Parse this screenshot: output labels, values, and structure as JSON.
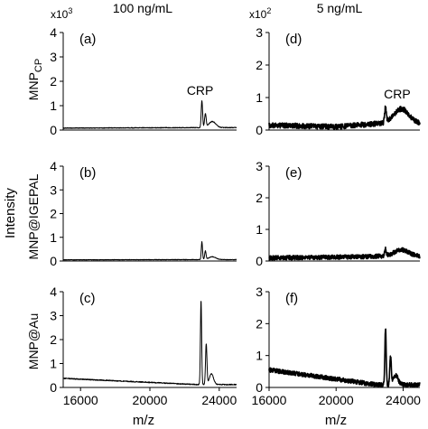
{
  "figure": {
    "shared_ylabel": "Intensity",
    "col_titles": [
      "100 ng/mL",
      "5 ng/mL"
    ],
    "col_multipliers": [
      {
        "base": "x10",
        "exp": "3"
      },
      {
        "base": "x10",
        "exp": "2"
      }
    ],
    "row_labels": [
      {
        "main": "MNP",
        "sub": "CP"
      },
      {
        "main": "MNP@IGEPAL",
        "sub": ""
      },
      {
        "main": "MNP@Au",
        "sub": ""
      }
    ],
    "xlabel": "m/z"
  },
  "chart_data": [
    {
      "id": "a",
      "panel_label": "(a)",
      "type": "line",
      "annotation": "CRP",
      "xlim": [
        15000,
        25000
      ],
      "ylim": [
        0,
        4
      ],
      "yticks": [
        0,
        1,
        2,
        3,
        4
      ],
      "xticks": [],
      "y_scale": "x10^3",
      "baseline": [
        {
          "x": 15000,
          "y": 0.08
        },
        {
          "x": 22500,
          "y": 0.1
        }
      ],
      "peaks": [
        {
          "x": 23000,
          "h": 1.1,
          "w": 40
        },
        {
          "x": 23200,
          "h": 0.55,
          "w": 45
        },
        {
          "x": 23600,
          "h": 0.25,
          "w": 200
        }
      ],
      "noise": 0.015
    },
    {
      "id": "b",
      "panel_label": "(b)",
      "type": "line",
      "xlim": [
        15000,
        25000
      ],
      "ylim": [
        0,
        4
      ],
      "yticks": [
        0,
        1,
        2,
        3,
        4
      ],
      "xticks": [],
      "y_scale": "x10^3",
      "baseline": [
        {
          "x": 15000,
          "y": 0.05
        },
        {
          "x": 22500,
          "y": 0.06
        }
      ],
      "peaks": [
        {
          "x": 23000,
          "h": 0.75,
          "w": 35
        },
        {
          "x": 23200,
          "h": 0.35,
          "w": 40
        },
        {
          "x": 23600,
          "h": 0.12,
          "w": 200
        }
      ],
      "noise": 0.01
    },
    {
      "id": "c",
      "panel_label": "(c)",
      "type": "line",
      "xlim": [
        15000,
        25000
      ],
      "ylim": [
        0,
        4
      ],
      "yticks": [
        0,
        1,
        2,
        3,
        4
      ],
      "xticks": [
        16000,
        20000,
        24000
      ],
      "y_scale": "x10^3",
      "baseline": [
        {
          "x": 15000,
          "y": 0.38
        },
        {
          "x": 22700,
          "y": 0.12
        }
      ],
      "peaks": [
        {
          "x": 22950,
          "h": 3.5,
          "w": 35
        },
        {
          "x": 23250,
          "h": 1.7,
          "w": 40
        },
        {
          "x": 23550,
          "h": 0.45,
          "w": 120
        }
      ],
      "noise": 0.02
    },
    {
      "id": "d",
      "panel_label": "(d)",
      "type": "line",
      "annotation": "CRP",
      "xlim": [
        16000,
        25000
      ],
      "ylim": [
        0,
        3
      ],
      "yticks": [
        0,
        1,
        2,
        3
      ],
      "xticks": [],
      "y_scale": "x10^2",
      "baseline": [
        {
          "x": 16000,
          "y": 0.15
        },
        {
          "x": 20000,
          "y": 0.1
        },
        {
          "x": 22500,
          "y": 0.2
        }
      ],
      "peaks": [
        {
          "x": 22950,
          "h": 0.45,
          "w": 50
        },
        {
          "x": 23900,
          "h": 0.45,
          "w": 450
        }
      ],
      "noise": 0.08
    },
    {
      "id": "e",
      "panel_label": "(e)",
      "type": "line",
      "xlim": [
        16000,
        25000
      ],
      "ylim": [
        0,
        3
      ],
      "yticks": [
        0,
        1,
        2,
        3
      ],
      "xticks": [],
      "y_scale": "x10^2",
      "baseline": [
        {
          "x": 16000,
          "y": 0.1
        },
        {
          "x": 20000,
          "y": 0.12
        },
        {
          "x": 22500,
          "y": 0.15
        }
      ],
      "peaks": [
        {
          "x": 22950,
          "h": 0.2,
          "w": 45
        },
        {
          "x": 23900,
          "h": 0.2,
          "w": 450
        }
      ],
      "noise": 0.07
    },
    {
      "id": "f",
      "panel_label": "(f)",
      "type": "line",
      "xlim": [
        16000,
        25000
      ],
      "ylim": [
        0,
        3
      ],
      "yticks": [
        0,
        1,
        2,
        3
      ],
      "xticks": [
        16000,
        20000,
        24000
      ],
      "y_scale": "x10^2",
      "baseline": [
        {
          "x": 16000,
          "y": 0.55
        },
        {
          "x": 22500,
          "y": 0.08
        }
      ],
      "peaks": [
        {
          "x": 22950,
          "h": 1.75,
          "w": 40
        },
        {
          "x": 23250,
          "h": 0.85,
          "w": 45
        },
        {
          "x": 23550,
          "h": 0.3,
          "w": 150
        }
      ],
      "noise": 0.07
    }
  ]
}
